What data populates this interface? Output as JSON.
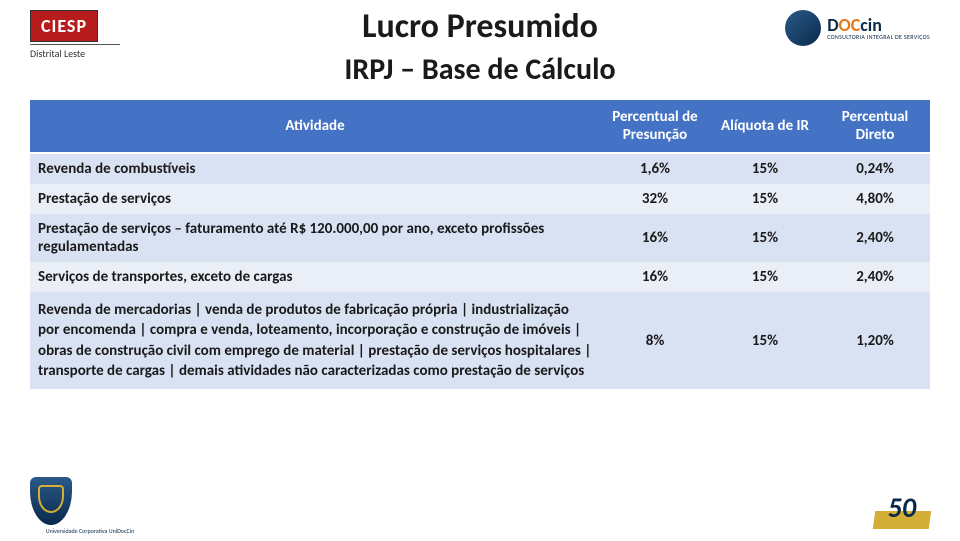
{
  "header": {
    "ciesp": "CIESP",
    "ciesp_sub": "Distrital Leste",
    "doccin_d": "D",
    "doccin_oc": "OC",
    "doccin_cin": "cin",
    "doccin_sub": "CONSULTORIA INTEGRAL DE SERVIÇOS"
  },
  "titles": {
    "main": "Lucro Presumido",
    "sub": "IRPJ – Base de Cálculo"
  },
  "table": {
    "columns": [
      "Atividade",
      "Percentual de Presunção",
      "Alíquota de IR",
      "Percentual Direto"
    ],
    "col_widths": [
      "auto",
      "110px",
      "110px",
      "110px"
    ],
    "header_bg": "#4472c4",
    "header_color": "#ffffff",
    "band_colors": [
      "#d9e2f3",
      "#eaeef7"
    ],
    "rows": [
      {
        "activity": "Revenda de combustíveis",
        "p1": "1,6%",
        "p2": "15%",
        "p3": "0,24%"
      },
      {
        "activity": "Prestação de serviços",
        "p1": "32%",
        "p2": "15%",
        "p3": "4,80%"
      },
      {
        "activity": "Prestação de serviços – faturamento até R$ 120.000,00 por ano, exceto profissões regulamentadas",
        "p1": "16%",
        "p2": "15%",
        "p3": "2,40%"
      },
      {
        "activity": "Serviços de transportes, exceto de cargas",
        "p1": "16%",
        "p2": "15%",
        "p3": "2,40%"
      },
      {
        "activity": "Revenda de mercadorias | venda de produtos de fabricação própria | industrialização por encomenda | compra e venda, loteamento, incorporação e construção de imóveis | obras de construção civil com emprego de material | prestação de serviços hospitalares | transporte de cargas | demais atividades não caracterizadas como prestação de serviços",
        "p1": "8%",
        "p2": "15%",
        "p3": "1,20%"
      }
    ]
  },
  "footer": {
    "shield_label": "Universidade Corporativa UniDocCin",
    "badge": "50"
  }
}
